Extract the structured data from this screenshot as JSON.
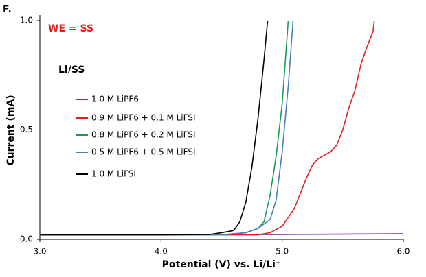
{
  "chart_data": {
    "type": "line",
    "panel_label": "F.",
    "annotation": "WE = SS",
    "legend_title": "Li/SS",
    "xlabel": "Potential (V) vs. Li/Li⁺",
    "ylabel": "Current (mA)",
    "xlim": [
      3.0,
      6.0
    ],
    "ylim": [
      0.0,
      1.0
    ],
    "xticks": [
      {
        "value": 3,
        "label": "3.0"
      },
      {
        "value": 4,
        "label": "4.0"
      },
      {
        "value": 5,
        "label": "5.0"
      },
      {
        "value": 6,
        "label": "6.0"
      }
    ],
    "yticks": [
      {
        "value": 0,
        "label": "0.0"
      },
      {
        "value": 0.5,
        "label": "0.5"
      },
      {
        "value": 1,
        "label": "1.0"
      }
    ],
    "series": [
      {
        "name": "1.0 M LiPF6",
        "color": "#7030a0",
        "x": [
          3.0,
          4.0,
          5.0,
          6.0
        ],
        "values": [
          0.02,
          0.02,
          0.022,
          0.025
        ]
      },
      {
        "name": "0.9 M  LiPF6 + 0.1 M LiFSI",
        "color": "#e02020",
        "x": [
          3.0,
          4.0,
          4.8,
          4.9,
          5.0,
          5.1,
          5.2,
          5.25,
          5.3,
          5.4,
          5.45,
          5.5,
          5.55,
          5.6,
          5.65,
          5.7,
          5.75,
          5.76
        ],
        "values": [
          0.02,
          0.02,
          0.02,
          0.03,
          0.06,
          0.14,
          0.28,
          0.34,
          0.37,
          0.4,
          0.43,
          0.5,
          0.6,
          0.68,
          0.8,
          0.88,
          0.95,
          1.0
        ]
      },
      {
        "name": "0.8 M LiPF6 + 0.2 M LiFSI",
        "color": "#1a9a5a",
        "x": [
          3.0,
          4.0,
          4.5,
          4.7,
          4.8,
          4.85,
          4.9,
          4.95,
          5.0,
          5.05
        ],
        "values": [
          0.02,
          0.02,
          0.02,
          0.03,
          0.05,
          0.08,
          0.2,
          0.38,
          0.62,
          1.0
        ]
      },
      {
        "name": "0.5 M LiPF6 + 0.5 M LiFSI",
        "color": "#4a7ebb",
        "x": [
          3.0,
          4.0,
          4.5,
          4.7,
          4.8,
          4.9,
          4.95,
          5.0,
          5.05,
          5.09
        ],
        "values": [
          0.02,
          0.02,
          0.02,
          0.03,
          0.05,
          0.09,
          0.18,
          0.4,
          0.7,
          1.0
        ]
      },
      {
        "name": "1.0 M LiFSI",
        "color": "#000000",
        "x": [
          3.0,
          4.0,
          4.4,
          4.5,
          4.6,
          4.65,
          4.7,
          4.75,
          4.8,
          4.85,
          4.88
        ],
        "values": [
          0.02,
          0.02,
          0.022,
          0.03,
          0.04,
          0.08,
          0.17,
          0.33,
          0.55,
          0.82,
          1.0
        ]
      }
    ]
  }
}
